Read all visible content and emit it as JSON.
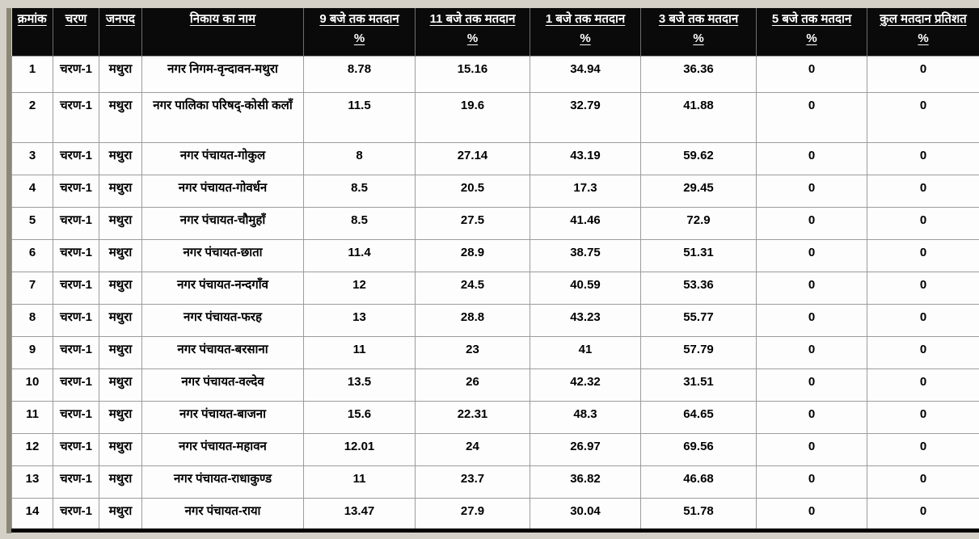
{
  "colors": {
    "page_bg": "#d4d0c8",
    "left_strip": "#8a8775",
    "header_bg": "#0a0a0a",
    "header_text": "#ffffff",
    "grid_line": "#9c9c9c",
    "cell_bg": "#fdfdfd",
    "cell_text": "#000000",
    "table_bottom_bar": "#000000"
  },
  "table": {
    "columns": [
      {
        "label": "क्रमांक",
        "sub": ""
      },
      {
        "label": "चरण",
        "sub": ""
      },
      {
        "label": "जनपद",
        "sub": ""
      },
      {
        "label": "निकाय का नाम",
        "sub": ""
      },
      {
        "label": "9 बजे तक मतदान",
        "sub": "%"
      },
      {
        "label": "11 बजे तक मतदान",
        "sub": "%"
      },
      {
        "label": "1 बजे तक मतदान",
        "sub": "%"
      },
      {
        "label": "3 बजे तक मतदान",
        "sub": "%"
      },
      {
        "label": "5 बजे तक मतदान",
        "sub": "%"
      },
      {
        "label": "कुल मतदान प्रतिशत",
        "sub": "%"
      }
    ],
    "rows": [
      [
        "1",
        "चरण-1",
        "मथुरा",
        "नगर निगम-वृन्दावन-मथुरा",
        "8.78",
        "15.16",
        "34.94",
        "36.36",
        "0",
        "0"
      ],
      [
        "2",
        "चरण-1",
        "मथुरा",
        "नगर पालिका परिषद्-कोसी कलाँ",
        "11.5",
        "19.6",
        "32.79",
        "41.88",
        "0",
        "0"
      ],
      [
        "3",
        "चरण-1",
        "मथुरा",
        "नगर पंचायत-गोकुल",
        "8",
        "27.14",
        "43.19",
        "59.62",
        "0",
        "0"
      ],
      [
        "4",
        "चरण-1",
        "मथुरा",
        "नगर पंचायत-गोवर्धन",
        "8.5",
        "20.5",
        "17.3",
        "29.45",
        "0",
        "0"
      ],
      [
        "5",
        "चरण-1",
        "मथुरा",
        "नगर पंचायत-चौमुहाँ",
        "8.5",
        "27.5",
        "41.46",
        "72.9",
        "0",
        "0"
      ],
      [
        "6",
        "चरण-1",
        "मथुरा",
        "नगर पंचायत-छाता",
        "11.4",
        "28.9",
        "38.75",
        "51.31",
        "0",
        "0"
      ],
      [
        "7",
        "चरण-1",
        "मथुरा",
        "नगर पंचायत-नन्दगाँव",
        "12",
        "24.5",
        "40.59",
        "53.36",
        "0",
        "0"
      ],
      [
        "8",
        "चरण-1",
        "मथुरा",
        "नगर पंचायत-फरह",
        "13",
        "28.8",
        "43.23",
        "55.77",
        "0",
        "0"
      ],
      [
        "9",
        "चरण-1",
        "मथुरा",
        "नगर पंचायत-बरसाना",
        "11",
        "23",
        "41",
        "57.79",
        "0",
        "0"
      ],
      [
        "10",
        "चरण-1",
        "मथुरा",
        "नगर पंचायत-वल्देव",
        "13.5",
        "26",
        "42.32",
        "31.51",
        "0",
        "0"
      ],
      [
        "11",
        "चरण-1",
        "मथुरा",
        "नगर पंचायत-बाजना",
        "15.6",
        "22.31",
        "48.3",
        "64.65",
        "0",
        "0"
      ],
      [
        "12",
        "चरण-1",
        "मथुरा",
        "नगर पंचायत-महावन",
        "12.01",
        "24",
        "26.97",
        "69.56",
        "0",
        "0"
      ],
      [
        "13",
        "चरण-1",
        "मथुरा",
        "नगर पंचायत-राधाकुण्ड",
        "11",
        "23.7",
        "36.82",
        "46.68",
        "0",
        "0"
      ],
      [
        "14",
        "चरण-1",
        "मथुरा",
        "नगर पंचायत-राया",
        "13.47",
        "27.9",
        "30.04",
        "51.78",
        "0",
        "0"
      ]
    ]
  }
}
